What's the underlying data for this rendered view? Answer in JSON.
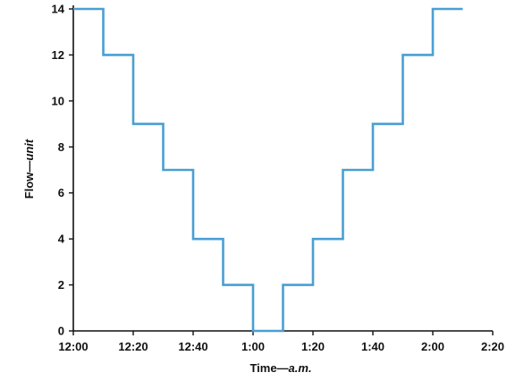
{
  "chart_data": {
    "type": "line",
    "step": true,
    "x": [
      0,
      10,
      20,
      30,
      40,
      50,
      60,
      70,
      80,
      90,
      100,
      110,
      120,
      130
    ],
    "x_end": 130,
    "series": [
      {
        "values": [
          14,
          12,
          9,
          7,
          4,
          2,
          0,
          2,
          4,
          7,
          9,
          12,
          14,
          14
        ],
        "color": "#4a9fd4"
      }
    ],
    "x_ticks": [
      0,
      20,
      40,
      60,
      80,
      100,
      120,
      140
    ],
    "x_tick_labels": [
      "12:00",
      "12:20",
      "12:40",
      "1:00",
      "1:20",
      "1:40",
      "2:00",
      "2:20"
    ],
    "y_ticks": [
      0,
      2,
      4,
      6,
      8,
      10,
      12,
      14
    ],
    "y_tick_labels": [
      "0",
      "2",
      "4",
      "6",
      "8",
      "10",
      "12",
      "14"
    ],
    "xlim": [
      0,
      140
    ],
    "ylim": [
      0,
      14
    ],
    "xlabel_main": "Time—",
    "xlabel_unit": "a.m.",
    "ylabel_main": "Flow—",
    "ylabel_unit": "unit",
    "grid": false,
    "axis_color": "#111111"
  }
}
